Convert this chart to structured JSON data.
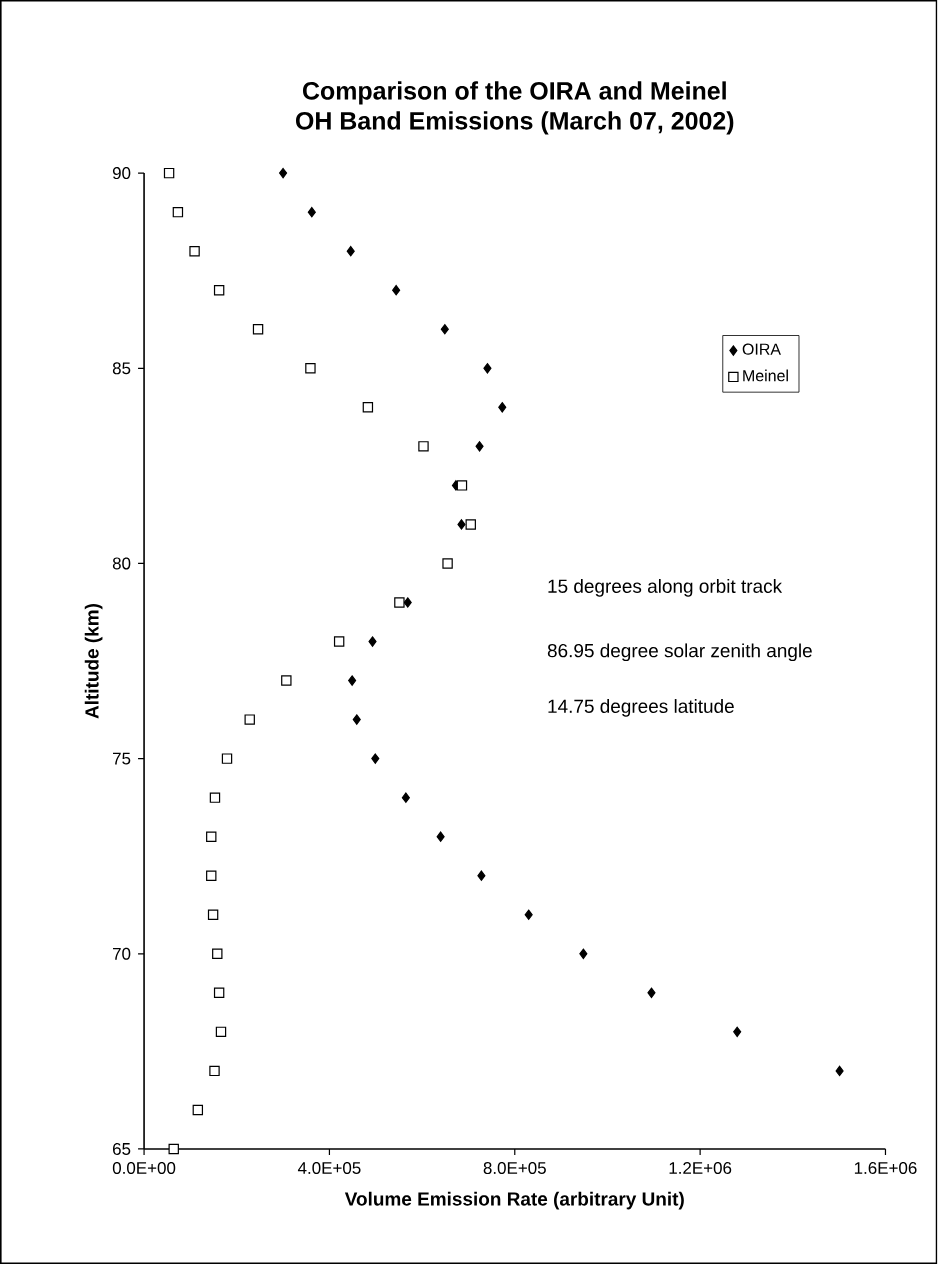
{
  "chart_data": {
    "type": "scatter",
    "title": "Comparison of the OIRA and Meinel\nOH Band Emissions (March 07, 2002)",
    "xlabel": "Volume Emission Rate (arbitrary Unit)",
    "ylabel": "Altitude (km)",
    "series": [
      {
        "name": "OIRA",
        "color": "#000000",
        "marker": "diamond",
        "x": [
          300000,
          362000,
          446000,
          544000,
          649000,
          741000,
          773000,
          724000,
          673000,
          685000,
          569000,
          493000,
          449000,
          459000,
          499000,
          565000,
          640000,
          728000,
          830000,
          948000,
          1095000,
          1280000,
          1501000
        ],
        "values": [
          90,
          89,
          88,
          87,
          86,
          85,
          84,
          83,
          82,
          81,
          79,
          78,
          77,
          76,
          75,
          74,
          73,
          72,
          71,
          70,
          69,
          68,
          67
        ]
      },
      {
        "name": "Meinel",
        "color": "#000000",
        "marker": "square",
        "x": [
          54000,
          73000,
          109000,
          162000,
          246000,
          359000,
          483000,
          603000,
          686000,
          705000,
          655000,
          551000,
          421000,
          307000,
          228000,
          179000,
          153000,
          145000,
          145000,
          149000,
          158000,
          162000,
          166000,
          152000,
          116000,
          64000
        ],
        "values": [
          90,
          89,
          88,
          87,
          86,
          85,
          84,
          83,
          82,
          81,
          80,
          79,
          78,
          77,
          76,
          75,
          74,
          73,
          72,
          71,
          70,
          69,
          68,
          67,
          66,
          65
        ]
      }
    ],
    "xlim": [
      0,
      1600000
    ],
    "ylim": [
      65,
      90
    ],
    "xticks": [
      {
        "value": 0,
        "label": "0.0E+00"
      },
      {
        "value": 400000,
        "label": "4.0E+05"
      },
      {
        "value": 800000,
        "label": "8.0E+05"
      },
      {
        "value": 1200000,
        "label": "1.2E+06"
      },
      {
        "value": 1600000,
        "label": "1.6E+06"
      }
    ],
    "yticks": [
      65,
      70,
      75,
      80,
      85,
      90
    ],
    "grid": false,
    "legend": "right",
    "annotations": [
      "15 degrees along orbit track",
      "86.95 degree solar zenith angle",
      "14.75 degrees latitude"
    ]
  }
}
